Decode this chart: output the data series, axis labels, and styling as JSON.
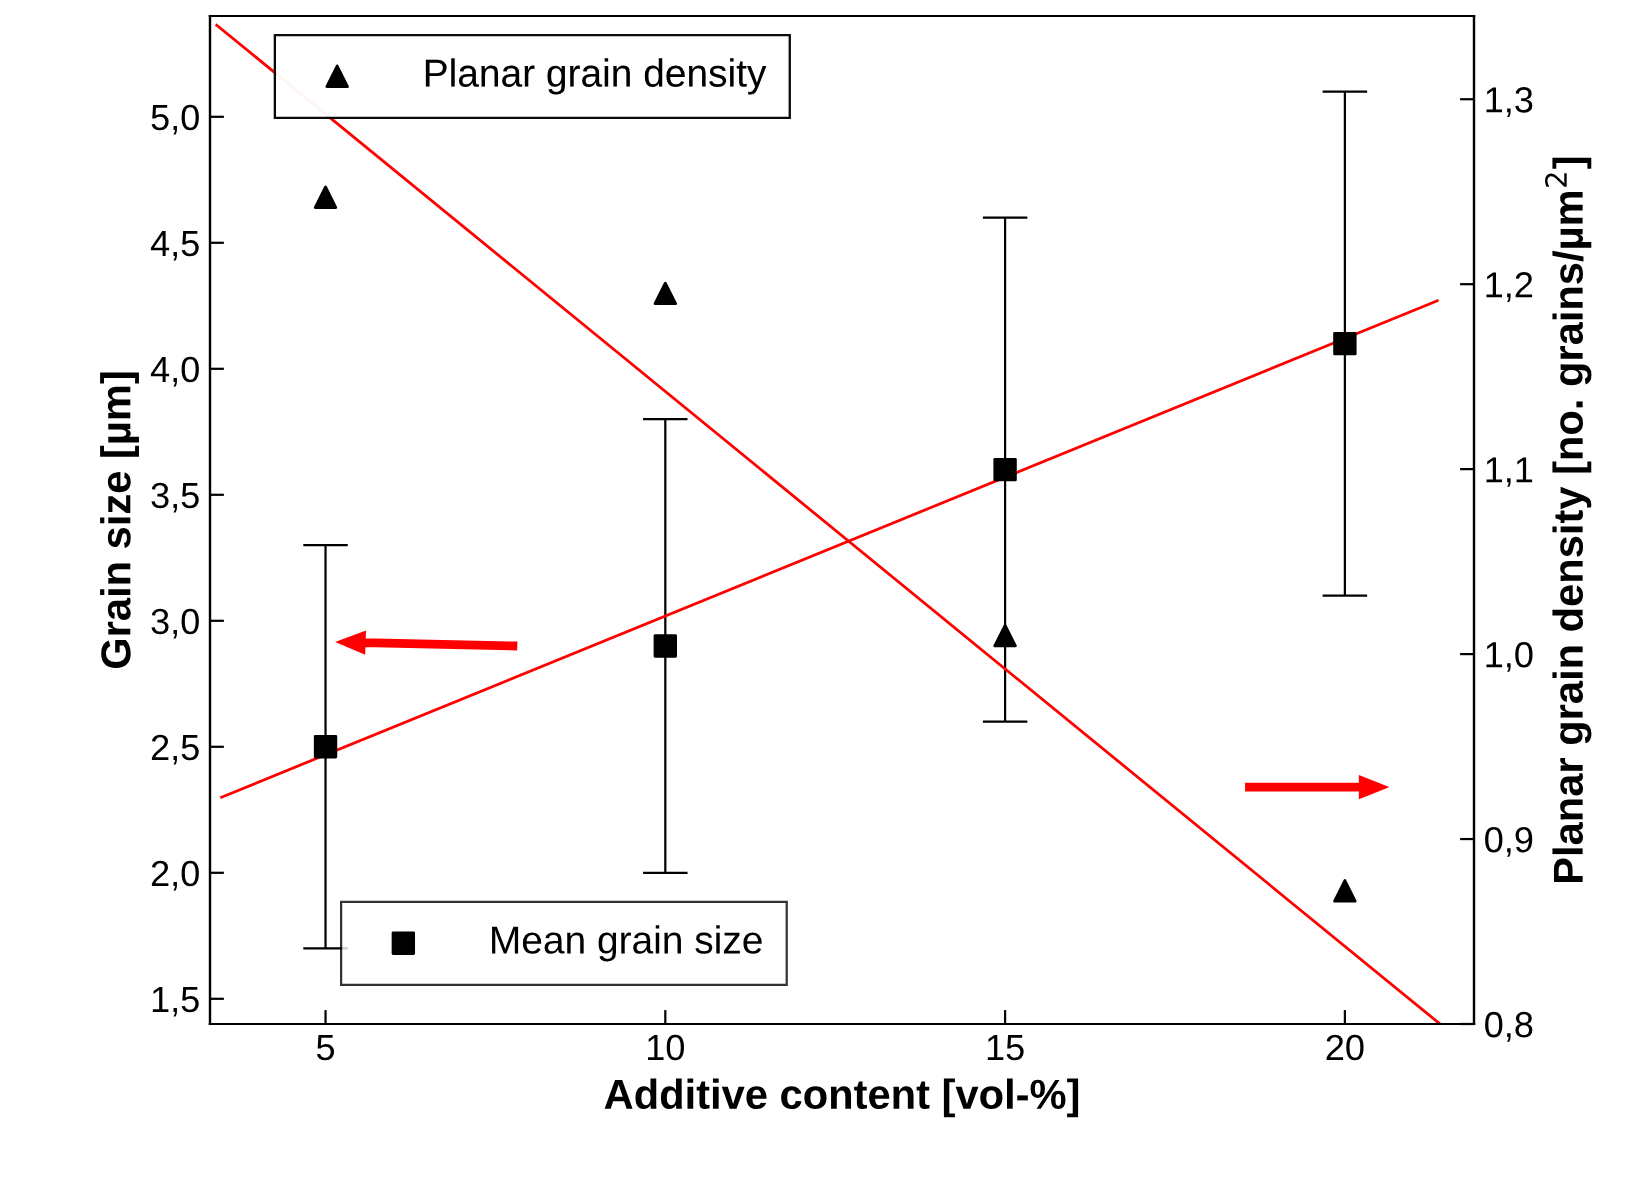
{
  "chart_data": {
    "type": "scatter",
    "xlabel": "Additive content [vol-%]",
    "ylabel": "Grain size [µm]",
    "y2label": "Planar grain density [no. grains/µm$^{2}$]",
    "xlim": [
      3.3,
      21.9
    ],
    "ylim": [
      1.4,
      5.4
    ],
    "y2lim": [
      0.8,
      1.345
    ],
    "xticks": [
      5,
      10,
      15,
      20
    ],
    "yticks": [
      {
        "value": 1.5,
        "label": "1,5"
      },
      {
        "value": 2.0,
        "label": "2,0"
      },
      {
        "value": 2.5,
        "label": "2,5"
      },
      {
        "value": 3.0,
        "label": "3,0"
      },
      {
        "value": 3.5,
        "label": "3,5"
      },
      {
        "value": 4.0,
        "label": "4,0"
      },
      {
        "value": 4.5,
        "label": "4,5"
      },
      {
        "value": 5.0,
        "label": "5,0"
      }
    ],
    "y2ticks": [
      {
        "value": 0.8,
        "label": "0,8"
      },
      {
        "value": 0.9,
        "label": "0,9"
      },
      {
        "value": 1.0,
        "label": "1,0"
      },
      {
        "value": 1.1,
        "label": "1,1"
      },
      {
        "value": 1.2,
        "label": "1,2"
      },
      {
        "value": 1.3,
        "label": "1,3"
      }
    ],
    "x": [
      5,
      10,
      15,
      20
    ],
    "series": [
      {
        "name": "Mean grain size",
        "marker": "square",
        "color": "#000000",
        "axis": "y",
        "values": [
          2.5,
          2.9,
          3.6,
          4.1
        ],
        "errors": [
          0.8,
          0.9,
          1.0,
          1.0
        ]
      },
      {
        "name": "Planar grain density",
        "marker": "triangle",
        "color": "#000000",
        "axis": "y2",
        "values": [
          1.247,
          1.195,
          1.01,
          0.872
        ]
      },
      {
        "type": "line",
        "color": "#ff0000",
        "axis": "y",
        "x": [
          3.47,
          21.36
        ],
        "values": [
          2.3,
          4.27
        ]
      },
      {
        "type": "line",
        "color": "#ff0000",
        "axis": "y2",
        "x": [
          3.4,
          21.4
        ],
        "values": [
          1.34,
          0.8
        ]
      }
    ],
    "legend": "top left",
    "grid": false
  }
}
